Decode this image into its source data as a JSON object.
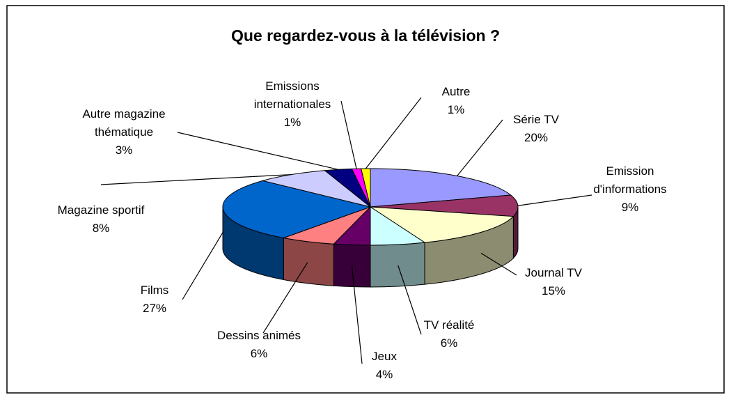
{
  "chart_data": {
    "type": "pie3d",
    "title": "Que regardez-vous à la télévision ?",
    "categories": [
      "Série TV",
      "Emission d'informations",
      "Journal TV",
      "TV réalité",
      "Jeux",
      "Dessins animés",
      "Films",
      "Magazine sportif",
      "Autre magazine thématique",
      "Emissions internationales",
      "Autre"
    ],
    "values": [
      20,
      9,
      15,
      6,
      4,
      6,
      27,
      8,
      3,
      1,
      1
    ],
    "value_labels": [
      "20%",
      "9%",
      "15%",
      "6%",
      "4%",
      "6%",
      "27%",
      "8%",
      "3%",
      "1%",
      "1%"
    ],
    "colors": [
      "#9999ff",
      "#993366",
      "#ffffcc",
      "#ccffff",
      "#660066",
      "#ff8080",
      "#0066cc",
      "#ccccff",
      "#000080",
      "#ff00ff",
      "#ffff00"
    ]
  }
}
